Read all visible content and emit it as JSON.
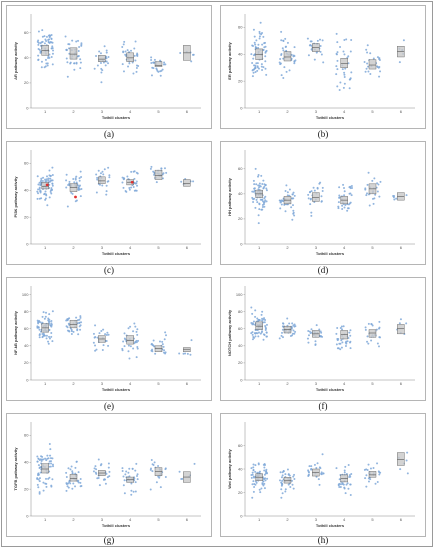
{
  "colors": {
    "point": "#7fa8d8",
    "box_fill": "#c8c8c8",
    "box_stroke": "#555555",
    "axis": "#888888",
    "outlier": "#e03030"
  },
  "chart_data": [
    {
      "type": "scatter",
      "panel": "a",
      "caption": "(a)",
      "xlabel": "Tothill clusters",
      "ylabel": "AR pathway activity",
      "categories": [
        "1",
        "2",
        "3",
        "4",
        "5",
        "6"
      ],
      "yticks": [
        0,
        20,
        40,
        60
      ],
      "ylim": [
        0,
        75
      ],
      "box_median": [
        46,
        43,
        39,
        40,
        34,
        44
      ],
      "box_q1": [
        42,
        39,
        37,
        37,
        33,
        38
      ],
      "box_q3": [
        50,
        48,
        42,
        44,
        37,
        50
      ],
      "n_points": [
        70,
        40,
        25,
        35,
        25,
        6
      ],
      "spread": [
        18,
        15,
        12,
        13,
        10,
        10
      ]
    },
    {
      "type": "scatter",
      "panel": "b",
      "caption": "(b)",
      "xlabel": "Tothill clusters",
      "ylabel": "ER pathway activity",
      "categories": [
        "1",
        "2",
        "3",
        "4",
        "5",
        "6"
      ],
      "yticks": [
        0,
        20,
        40,
        60
      ],
      "ylim": [
        0,
        70
      ],
      "box_median": [
        40,
        38,
        45,
        33,
        32,
        42
      ],
      "box_q1": [
        36,
        35,
        42,
        30,
        29,
        38
      ],
      "box_q3": [
        44,
        42,
        48,
        37,
        36,
        46
      ],
      "n_points": [
        70,
        40,
        25,
        35,
        25,
        6
      ],
      "spread": [
        18,
        16,
        10,
        25,
        14,
        8
      ]
    },
    {
      "type": "scatter",
      "panel": "c",
      "caption": "(c)",
      "xlabel": "Tothill clusters",
      "ylabel": "PI3K pathway activity",
      "categories": [
        "1",
        "2",
        "3",
        "4",
        "5",
        "6"
      ],
      "yticks": [
        0,
        20,
        40,
        60
      ],
      "ylim": [
        0,
        70
      ],
      "box_median": [
        43,
        42,
        47,
        46,
        51,
        45
      ],
      "box_q1": [
        41,
        39,
        45,
        44,
        48,
        43
      ],
      "box_q3": [
        46,
        45,
        50,
        48,
        55,
        48
      ],
      "n_points": [
        70,
        40,
        25,
        35,
        25,
        6
      ],
      "spread": [
        12,
        12,
        10,
        10,
        8,
        5
      ]
    },
    {
      "type": "scatter",
      "panel": "d",
      "caption": "(d)",
      "xlabel": "Tothill clusters",
      "ylabel": "HH pathway activity",
      "categories": [
        "1",
        "2",
        "3",
        "4",
        "5",
        "6"
      ],
      "yticks": [
        0,
        20,
        40,
        60
      ],
      "ylim": [
        0,
        75
      ],
      "box_median": [
        40,
        35,
        37,
        35,
        44,
        38
      ],
      "box_q1": [
        37,
        32,
        34,
        32,
        40,
        35
      ],
      "box_q3": [
        43,
        38,
        41,
        38,
        48,
        41
      ],
      "n_points": [
        70,
        40,
        25,
        35,
        25,
        6
      ],
      "spread": [
        16,
        12,
        12,
        12,
        12,
        6
      ]
    },
    {
      "type": "scatter",
      "panel": "e",
      "caption": "(e)",
      "xlabel": "Tothill clusters",
      "ylabel": "NF-kB pathway activity",
      "categories": [
        "1",
        "2",
        "3",
        "4",
        "5",
        "6"
      ],
      "yticks": [
        0,
        20,
        40,
        60,
        80,
        100
      ],
      "ylim": [
        0,
        110
      ],
      "box_median": [
        61,
        65,
        48,
        46,
        37,
        36
      ],
      "box_q1": [
        56,
        61,
        44,
        42,
        33,
        33
      ],
      "box_q3": [
        66,
        70,
        52,
        52,
        40,
        38
      ],
      "n_points": [
        70,
        40,
        25,
        35,
        25,
        6
      ],
      "spread": [
        22,
        15,
        16,
        20,
        16,
        8
      ]
    },
    {
      "type": "scatter",
      "panel": "f",
      "caption": "(f)",
      "xlabel": "Tothill clusters",
      "ylabel": "NOTCH pathway activity",
      "categories": [
        "1",
        "2",
        "3",
        "4",
        "5",
        "6"
      ],
      "yticks": [
        0,
        20,
        40,
        60,
        80,
        100
      ],
      "ylim": [
        0,
        110
      ],
      "box_median": [
        63,
        59,
        54,
        53,
        55,
        60
      ],
      "box_q1": [
        59,
        55,
        50,
        48,
        50,
        54
      ],
      "box_q3": [
        68,
        63,
        58,
        58,
        59,
        65
      ],
      "n_points": [
        70,
        40,
        25,
        35,
        25,
        6
      ],
      "spread": [
        18,
        12,
        14,
        22,
        16,
        14
      ]
    },
    {
      "type": "scatter",
      "panel": "g",
      "caption": "(g)",
      "xlabel": "Tothill clusters",
      "ylabel": "TGFB pathway activity",
      "categories": [
        "1",
        "2",
        "3",
        "4",
        "5",
        "6"
      ],
      "yticks": [
        0,
        20,
        40,
        60
      ],
      "ylim": [
        0,
        70
      ],
      "box_median": [
        35,
        28,
        32,
        27,
        33,
        29
      ],
      "box_q1": [
        32,
        26,
        30,
        25,
        30,
        25
      ],
      "box_q3": [
        39,
        31,
        34,
        29,
        36,
        33
      ],
      "n_points": [
        70,
        40,
        25,
        35,
        25,
        6
      ],
      "spread": [
        18,
        12,
        12,
        10,
        12,
        8
      ]
    },
    {
      "type": "scatter",
      "panel": "h",
      "caption": "(h)",
      "xlabel": "Tothill clusters",
      "ylabel": "Wnt pathway activity",
      "categories": [
        "1",
        "2",
        "3",
        "4",
        "5",
        "6"
      ],
      "yticks": [
        0,
        20,
        40,
        60
      ],
      "ylim": [
        0,
        80
      ],
      "box_median": [
        33,
        30,
        37,
        32,
        35,
        48
      ],
      "box_q1": [
        30,
        28,
        34,
        29,
        33,
        43
      ],
      "box_q3": [
        36,
        33,
        40,
        35,
        38,
        54
      ],
      "n_points": [
        70,
        40,
        25,
        35,
        25,
        6
      ],
      "spread": [
        14,
        12,
        12,
        14,
        12,
        14
      ]
    }
  ]
}
